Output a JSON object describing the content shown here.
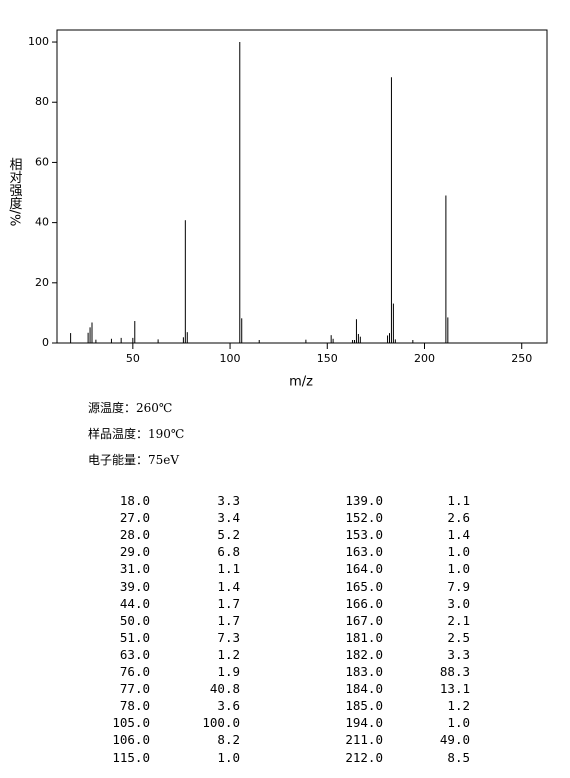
{
  "chart_data": {
    "type": "bar",
    "x_label": "m/z",
    "y_label": "相对强度/%",
    "x": [
      18,
      27,
      28,
      29,
      31,
      39,
      44,
      50,
      51,
      63,
      76,
      77,
      78,
      105,
      106,
      115,
      139,
      152,
      153,
      163,
      164,
      165,
      166,
      167,
      181,
      182,
      183,
      184,
      185,
      194,
      211,
      212
    ],
    "values": [
      3.3,
      3.4,
      5.2,
      6.8,
      1.1,
      1.4,
      1.7,
      1.7,
      7.3,
      1.2,
      1.9,
      40.8,
      3.6,
      100.0,
      8.2,
      1.0,
      1.1,
      2.6,
      1.4,
      1.0,
      1.0,
      7.9,
      3.0,
      2.1,
      2.5,
      3.3,
      88.3,
      13.1,
      1.2,
      1.0,
      49.0,
      8.5
    ],
    "color": "#000000",
    "xlim": [
      11,
      263
    ],
    "xticks": [
      50,
      100,
      150,
      200,
      250
    ],
    "ylim": [
      0,
      104
    ],
    "yticks": [
      0,
      20,
      40,
      60,
      80,
      100
    ]
  },
  "info": [
    "源温度：260℃",
    "样品温度：190℃",
    "电子能量：75eV"
  ],
  "peak_table": {
    "rows": [
      [
        "18.0",
        "3.3"
      ],
      [
        "27.0",
        "3.4"
      ],
      [
        "28.0",
        "5.2"
      ],
      [
        "29.0",
        "6.8"
      ],
      [
        "31.0",
        "1.1"
      ],
      [
        "39.0",
        "1.4"
      ],
      [
        "44.0",
        "1.7"
      ],
      [
        "50.0",
        "1.7"
      ],
      [
        "51.0",
        "7.3"
      ],
      [
        "63.0",
        "1.2"
      ],
      [
        "76.0",
        "1.9"
      ],
      [
        "77.0",
        "40.8"
      ],
      [
        "78.0",
        "3.6"
      ],
      [
        "105.0",
        "100.0"
      ],
      [
        "106.0",
        "8.2"
      ],
      [
        "115.0",
        "1.0"
      ],
      [
        "139.0",
        "1.1"
      ],
      [
        "152.0",
        "2.6"
      ],
      [
        "153.0",
        "1.4"
      ],
      [
        "163.0",
        "1.0"
      ],
      [
        "164.0",
        "1.0"
      ],
      [
        "165.0",
        "7.9"
      ],
      [
        "166.0",
        "3.0"
      ],
      [
        "167.0",
        "2.1"
      ],
      [
        "181.0",
        "2.5"
      ],
      [
        "182.0",
        "3.3"
      ],
      [
        "183.0",
        "88.3"
      ],
      [
        "184.0",
        "13.1"
      ],
      [
        "185.0",
        "1.2"
      ],
      [
        "194.0",
        "1.0"
      ],
      [
        "211.0",
        "49.0"
      ],
      [
        "212.0",
        "8.5"
      ]
    ]
  }
}
